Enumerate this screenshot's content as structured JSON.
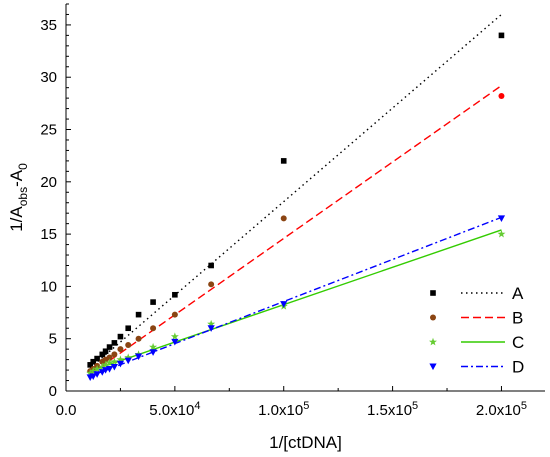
{
  "chart_data": {
    "type": "scatter",
    "title": "",
    "xlabel": "1/[ctDNA]",
    "ylabel": {
      "prefix": "1/A",
      "sub": "obs",
      "middle": "-A",
      "sub2": "0"
    },
    "xlim": [
      0,
      220000
    ],
    "ylim": [
      0,
      37
    ],
    "grid": false,
    "legend_position": "bottom-right",
    "x_ticks": [
      {
        "value": 0,
        "label": "0.0"
      },
      {
        "value": 50000,
        "label": "5.0x10",
        "exp": "4"
      },
      {
        "value": 100000,
        "label": "1.0x10",
        "exp": "5"
      },
      {
        "value": 150000,
        "label": "1.5x10",
        "exp": "5"
      },
      {
        "value": 200000,
        "label": "2.0x10",
        "exp": "5"
      }
    ],
    "y_ticks": [
      0,
      5,
      10,
      15,
      20,
      25,
      30,
      35
    ],
    "series": [
      {
        "name": "A",
        "marker": "square",
        "color": "#000000",
        "line_style": "dotted",
        "points": [
          [
            11111,
            2.5
          ],
          [
            12500,
            2.8
          ],
          [
            14286,
            3.1
          ],
          [
            16667,
            3.5
          ],
          [
            18182,
            3.8
          ],
          [
            20000,
            4.2
          ],
          [
            22222,
            4.6
          ],
          [
            25000,
            5.2
          ],
          [
            28571,
            6.0
          ],
          [
            33333,
            7.3
          ],
          [
            40000,
            8.5
          ],
          [
            50000,
            9.2
          ],
          [
            66667,
            12.0
          ],
          [
            100000,
            22.0
          ],
          [
            200000,
            34.0
          ]
        ],
        "fit": [
          [
            11111,
            2.2
          ],
          [
            200000,
            36.0
          ]
        ]
      },
      {
        "name": "B",
        "marker": "circle",
        "color": "#8b4513",
        "point_color": "#8b4513",
        "last_point_color": "#ff0000",
        "line_color": "#ff0000",
        "line_style": "dashed",
        "points": [
          [
            11111,
            1.9
          ],
          [
            12500,
            2.1
          ],
          [
            14286,
            2.4
          ],
          [
            16667,
            2.8
          ],
          [
            18182,
            3.0
          ],
          [
            20000,
            3.2
          ],
          [
            22222,
            3.5
          ],
          [
            25000,
            4.0
          ],
          [
            28571,
            4.4
          ],
          [
            33333,
            5.0
          ],
          [
            40000,
            6.0
          ],
          [
            50000,
            7.3
          ],
          [
            66667,
            10.2
          ],
          [
            100000,
            16.5
          ],
          [
            200000,
            28.2
          ]
        ],
        "fit": [
          [
            11111,
            1.6
          ],
          [
            200000,
            29.2
          ]
        ]
      },
      {
        "name": "C",
        "marker": "star",
        "color": "#66cc33",
        "line_color": "#33cc00",
        "line_style": "solid",
        "points": [
          [
            11111,
            1.7
          ],
          [
            12500,
            1.9
          ],
          [
            14286,
            2.1
          ],
          [
            16667,
            2.3
          ],
          [
            18182,
            2.5
          ],
          [
            20000,
            2.7
          ],
          [
            22222,
            2.8
          ],
          [
            25000,
            3.0
          ],
          [
            28571,
            3.2
          ],
          [
            33333,
            3.5
          ],
          [
            40000,
            4.2
          ],
          [
            50000,
            5.2
          ],
          [
            66667,
            6.4
          ],
          [
            100000,
            8.1
          ],
          [
            200000,
            15.0
          ]
        ],
        "fit": [
          [
            11111,
            1.9
          ],
          [
            200000,
            15.4
          ]
        ]
      },
      {
        "name": "D",
        "marker": "triangle-down",
        "color": "#0000ff",
        "line_style": "dashdot",
        "points": [
          [
            11111,
            1.3
          ],
          [
            12500,
            1.4
          ],
          [
            14286,
            1.6
          ],
          [
            16667,
            1.8
          ],
          [
            18182,
            2.0
          ],
          [
            20000,
            2.1
          ],
          [
            22222,
            2.3
          ],
          [
            25000,
            2.6
          ],
          [
            28571,
            2.9
          ],
          [
            33333,
            3.3
          ],
          [
            40000,
            3.7
          ],
          [
            50000,
            4.7
          ],
          [
            66667,
            6.0
          ],
          [
            100000,
            8.3
          ],
          [
            200000,
            16.5
          ]
        ],
        "fit": [
          [
            11111,
            1.4
          ],
          [
            200000,
            16.6
          ]
        ]
      }
    ]
  }
}
